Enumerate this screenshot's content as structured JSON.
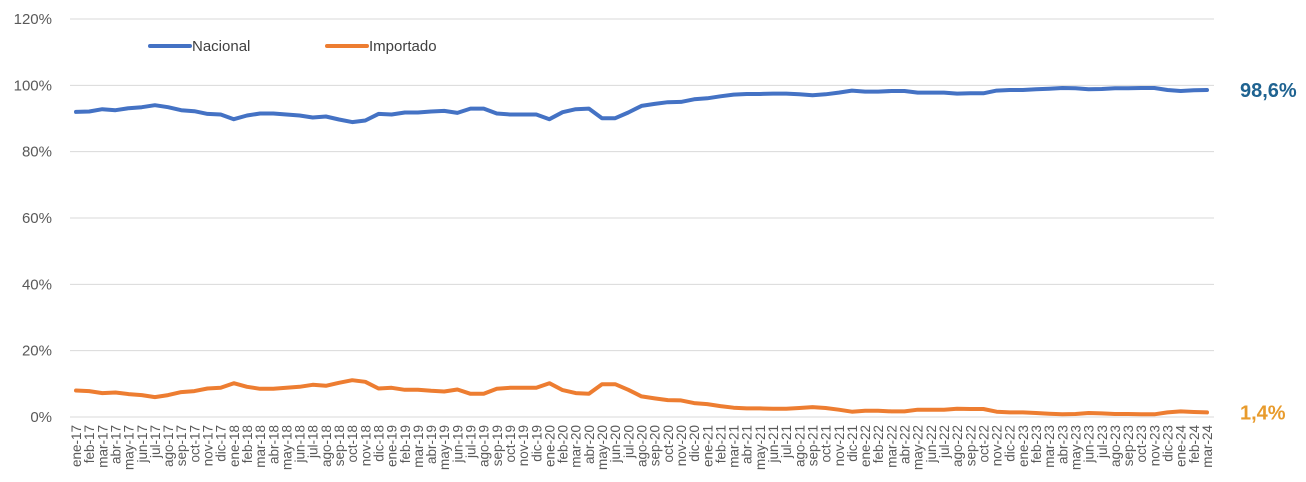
{
  "chart_data": {
    "type": "line",
    "title": "",
    "xlabel": "",
    "ylabel": "",
    "ylim": [
      0,
      120
    ],
    "y_tick_labels": [
      "0%",
      "20%",
      "40%",
      "60%",
      "80%",
      "100%",
      "120%"
    ],
    "grid": true,
    "legend_position": "top-left",
    "categories": [
      "ene-17",
      "feb-17",
      "mar-17",
      "abr-17",
      "may-17",
      "jun-17",
      "jul-17",
      "ago-17",
      "sep-17",
      "oct-17",
      "nov-17",
      "dic-17",
      "ene-18",
      "feb-18",
      "mar-18",
      "abr-18",
      "may-18",
      "jun-18",
      "jul-18",
      "ago-18",
      "sep-18",
      "oct-18",
      "nov-18",
      "dic-18",
      "ene-19",
      "feb-19",
      "mar-19",
      "abr-19",
      "may-19",
      "jun-19",
      "jul-19",
      "ago-19",
      "sep-19",
      "oct-19",
      "nov-19",
      "dic-19",
      "ene-20",
      "feb-20",
      "mar-20",
      "abr-20",
      "may-20",
      "jun-20",
      "jul-20",
      "ago-20",
      "sep-20",
      "oct-20",
      "nov-20",
      "dic-20",
      "ene-21",
      "feb-21",
      "mar-21",
      "abr-21",
      "may-21",
      "jun-21",
      "jul-21",
      "ago-21",
      "sep-21",
      "oct-21",
      "nov-21",
      "dic-21",
      "ene-22",
      "feb-22",
      "mar-22",
      "abr-22",
      "may-22",
      "jun-22",
      "jul-22",
      "ago-22",
      "sep-22",
      "oct-22",
      "nov-22",
      "dic-22",
      "ene-23",
      "feb-23",
      "mar-23",
      "abr-23",
      "may-23",
      "jun-23",
      "jul-23",
      "ago-23",
      "sep-23",
      "oct-23",
      "nov-23",
      "dic-23",
      "ene-24",
      "feb-24",
      "mar-24"
    ],
    "series": [
      {
        "name": "Nacional",
        "color": "#4472C4",
        "end_label": "98,6%",
        "end_label_color": "#1F6391",
        "values": [
          92.0,
          92.1,
          92.8,
          92.5,
          93.1,
          93.4,
          94.0,
          93.4,
          92.5,
          92.2,
          91.4,
          91.2,
          89.8,
          90.9,
          91.5,
          91.5,
          91.2,
          90.9,
          90.3,
          90.6,
          89.7,
          88.9,
          89.4,
          91.4,
          91.2,
          91.8,
          91.8,
          92.1,
          92.3,
          91.7,
          93.0,
          93.0,
          91.5,
          91.2,
          91.2,
          91.2,
          89.8,
          91.9,
          92.8,
          93.0,
          90.1,
          90.1,
          91.8,
          93.8,
          94.4,
          94.9,
          95.0,
          95.8,
          96.1,
          96.7,
          97.2,
          97.4,
          97.4,
          97.5,
          97.5,
          97.3,
          97.0,
          97.3,
          97.8,
          98.4,
          98.1,
          98.1,
          98.3,
          98.3,
          97.8,
          97.8,
          97.8,
          97.5,
          97.6,
          97.6,
          98.4,
          98.6,
          98.6,
          98.8,
          99.0,
          99.2,
          99.1,
          98.8,
          98.9,
          99.1,
          99.1,
          99.2,
          99.2,
          98.6,
          98.3,
          98.5,
          98.6
        ]
      },
      {
        "name": "Importado",
        "color": "#ED7D31",
        "end_label": "1,4%",
        "end_label_color": "#E89B2C",
        "values": [
          8.0,
          7.8,
          7.2,
          7.4,
          6.9,
          6.6,
          6.0,
          6.6,
          7.5,
          7.8,
          8.6,
          8.8,
          10.2,
          9.1,
          8.5,
          8.5,
          8.8,
          9.1,
          9.7,
          9.4,
          10.3,
          11.1,
          10.6,
          8.6,
          8.8,
          8.2,
          8.2,
          7.9,
          7.7,
          8.3,
          7.0,
          7.0,
          8.5,
          8.8,
          8.8,
          8.8,
          10.2,
          8.1,
          7.2,
          7.0,
          9.9,
          9.9,
          8.2,
          6.2,
          5.6,
          5.1,
          5.0,
          4.2,
          3.9,
          3.3,
          2.8,
          2.6,
          2.6,
          2.5,
          2.5,
          2.7,
          3.0,
          2.7,
          2.2,
          1.6,
          1.9,
          1.9,
          1.7,
          1.7,
          2.2,
          2.2,
          2.2,
          2.5,
          2.4,
          2.4,
          1.6,
          1.4,
          1.4,
          1.2,
          1.0,
          0.8,
          0.9,
          1.2,
          1.1,
          0.9,
          0.9,
          0.8,
          0.8,
          1.4,
          1.7,
          1.5,
          1.4
        ]
      }
    ]
  }
}
